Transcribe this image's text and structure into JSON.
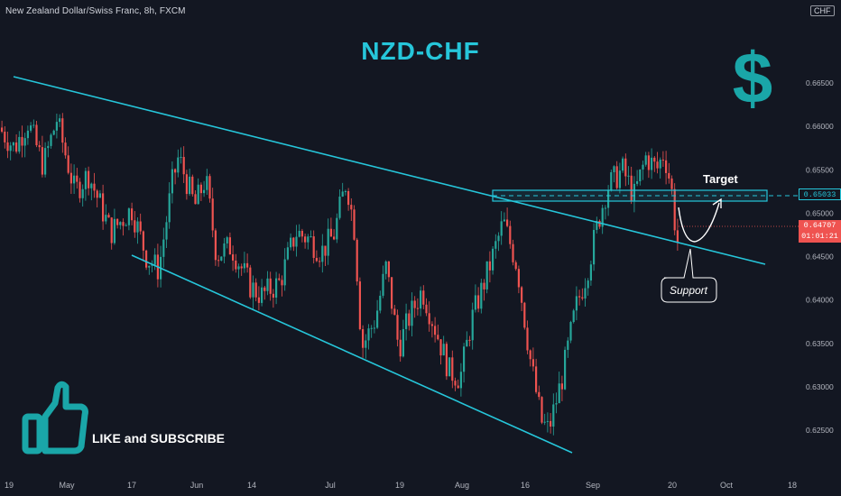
{
  "header": {
    "symbol": "New Zealand Dollar/Swiss Franc, 8h, FXCM",
    "currency": "CHF"
  },
  "title": "NZD-CHF",
  "dollar_icon": "dollar-sign-icon",
  "thumbs_icon": "thumbs-up-icon",
  "like_text": "LIKE and SUBSCRIBE",
  "annotations": {
    "target": "Target",
    "support": "Support"
  },
  "price_labels": {
    "target_level": "0.65033",
    "current_price": "0.64707",
    "countdown": "01:01:21"
  },
  "colors": {
    "background": "#131722",
    "bull": "#26a69a",
    "bear": "#ef5350",
    "trendline": "#26c6da",
    "current_price_tag": "#ef5350"
  },
  "chart_data": {
    "type": "candlestick",
    "ylim": [
      0.6215,
      0.6705
    ],
    "y_ticks": [
      "0.62500",
      "0.63000",
      "0.63500",
      "0.64000",
      "0.64500",
      "0.65000",
      "0.65500",
      "0.66000",
      "0.66500"
    ],
    "x_ticks": [
      "19",
      "May",
      "17",
      "Jun",
      "14",
      "Jul",
      "19",
      "Aug",
      "16",
      "Sep",
      "20",
      "Oct",
      "18"
    ],
    "price_path": [
      [
        0,
        0.66
      ],
      [
        18,
        0.6575
      ],
      [
        33,
        0.6605
      ],
      [
        50,
        0.6555
      ],
      [
        65,
        0.6608
      ],
      [
        85,
        0.6525
      ],
      [
        100,
        0.6545
      ],
      [
        125,
        0.6478
      ],
      [
        148,
        0.6505
      ],
      [
        165,
        0.6448
      ],
      [
        178,
        0.6435
      ],
      [
        193,
        0.6535
      ],
      [
        200,
        0.6565
      ],
      [
        218,
        0.6508
      ],
      [
        230,
        0.654
      ],
      [
        242,
        0.6452
      ],
      [
        258,
        0.6462
      ],
      [
        280,
        0.6415
      ],
      [
        292,
        0.6405
      ],
      [
        312,
        0.642
      ],
      [
        330,
        0.6478
      ],
      [
        345,
        0.647
      ],
      [
        358,
        0.6455
      ],
      [
        372,
        0.6475
      ],
      [
        386,
        0.6538
      ],
      [
        395,
        0.648
      ],
      [
        403,
        0.6345
      ],
      [
        418,
        0.6378
      ],
      [
        430,
        0.6438
      ],
      [
        444,
        0.6345
      ],
      [
        455,
        0.6378
      ],
      [
        470,
        0.6412
      ],
      [
        483,
        0.6372
      ],
      [
        500,
        0.6318
      ],
      [
        512,
        0.631
      ],
      [
        525,
        0.6378
      ],
      [
        545,
        0.644
      ],
      [
        560,
        0.649
      ],
      [
        575,
        0.644
      ],
      [
        590,
        0.633
      ],
      [
        602,
        0.626
      ],
      [
        610,
        0.625
      ],
      [
        625,
        0.631
      ],
      [
        640,
        0.639
      ],
      [
        652,
        0.643
      ],
      [
        665,
        0.649
      ],
      [
        675,
        0.653
      ],
      [
        692,
        0.655
      ],
      [
        705,
        0.652
      ],
      [
        718,
        0.6565
      ],
      [
        730,
        0.655
      ],
      [
        738,
        0.657
      ],
      [
        746,
        0.653
      ],
      [
        752,
        0.6468
      ]
    ],
    "series": [
      {
        "name": "",
        "type": "line",
        "role": "upper-trendline",
        "points": [
          [
            "Apr 10",
            0.6632
          ],
          [
            "Sep 23",
            0.643
          ]
        ]
      },
      {
        "name": "",
        "type": "line",
        "role": "lower-trendline",
        "points": [
          [
            "May 7",
            0.6434
          ],
          [
            "Aug 29",
            0.6245
          ]
        ]
      },
      {
        "name": "",
        "type": "hline",
        "role": "target-level",
        "value": 0.65033
      },
      {
        "name": "",
        "type": "projection",
        "role": "projected-path",
        "points": [
          [
            752,
            0.6485
          ],
          [
            762,
            0.6452
          ],
          [
            778,
            0.6462
          ],
          [
            797,
            0.6493
          ]
        ]
      }
    ],
    "target_zone": {
      "from": 0.6496,
      "to": 0.651
    },
    "current_price": 0.64707,
    "legend": "none",
    "grid": false
  }
}
